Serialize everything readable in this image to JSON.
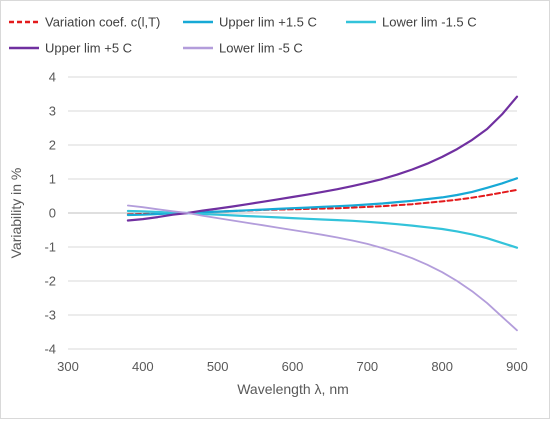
{
  "chart_data": {
    "type": "line",
    "title": "",
    "xlabel": "Wavelength λ, nm",
    "ylabel": "Variability in %",
    "xlim": [
      300,
      900
    ],
    "ylim": [
      -4,
      4
    ],
    "xticks": [
      300,
      400,
      500,
      600,
      700,
      800,
      900
    ],
    "yticks": [
      -4,
      -3,
      -2,
      -1,
      0,
      1,
      2,
      3,
      4
    ],
    "grid": "horizontal",
    "legend_position": "top",
    "x": [
      380,
      400,
      420,
      440,
      460,
      480,
      500,
      520,
      540,
      560,
      580,
      600,
      620,
      640,
      660,
      680,
      700,
      720,
      740,
      760,
      780,
      800,
      820,
      840,
      860,
      880,
      900
    ],
    "series": [
      {
        "name": "Variation coef.  c(l,T)",
        "color": "#e31a1c",
        "dash": "dashed",
        "values": [
          -0.04,
          -0.03,
          -0.02,
          -0.01,
          0.0,
          0.02,
          0.04,
          0.06,
          0.07,
          0.09,
          0.1,
          0.11,
          0.12,
          0.13,
          0.14,
          0.16,
          0.18,
          0.2,
          0.23,
          0.26,
          0.3,
          0.34,
          0.39,
          0.45,
          0.52,
          0.6,
          0.68
        ]
      },
      {
        "name": "Upper lim +1.5 C",
        "color": "#17a9d6",
        "dash": "solid",
        "values": [
          -0.06,
          -0.05,
          -0.03,
          -0.01,
          0.0,
          0.02,
          0.04,
          0.06,
          0.08,
          0.1,
          0.12,
          0.14,
          0.16,
          0.18,
          0.2,
          0.22,
          0.25,
          0.28,
          0.32,
          0.36,
          0.41,
          0.46,
          0.53,
          0.62,
          0.74,
          0.87,
          1.02
        ]
      },
      {
        "name": "Lower lim -1.5 C",
        "color": "#33c3da",
        "dash": "solid",
        "values": [
          0.06,
          0.05,
          0.03,
          0.01,
          0.0,
          -0.03,
          -0.05,
          -0.07,
          -0.09,
          -0.11,
          -0.13,
          -0.15,
          -0.17,
          -0.19,
          -0.21,
          -0.23,
          -0.26,
          -0.29,
          -0.33,
          -0.37,
          -0.42,
          -0.47,
          -0.54,
          -0.63,
          -0.74,
          -0.88,
          -1.02
        ]
      },
      {
        "name": "Upper lim +5 C",
        "color": "#7030a0",
        "dash": "solid",
        "values": [
          -0.22,
          -0.18,
          -0.12,
          -0.05,
          0.0,
          0.07,
          0.13,
          0.19,
          0.26,
          0.33,
          0.4,
          0.47,
          0.54,
          0.62,
          0.7,
          0.79,
          0.89,
          1.0,
          1.13,
          1.28,
          1.45,
          1.65,
          1.88,
          2.15,
          2.47,
          2.9,
          3.42
        ]
      },
      {
        "name": "Lower lim -5 C",
        "color": "#b39ddb",
        "dash": "solid",
        "values": [
          0.22,
          0.17,
          0.11,
          0.05,
          0.0,
          -0.08,
          -0.15,
          -0.22,
          -0.29,
          -0.36,
          -0.43,
          -0.5,
          -0.57,
          -0.64,
          -0.72,
          -0.81,
          -0.91,
          -1.03,
          -1.17,
          -1.33,
          -1.52,
          -1.74,
          -2.0,
          -2.3,
          -2.65,
          -3.05,
          -3.45
        ]
      }
    ]
  }
}
